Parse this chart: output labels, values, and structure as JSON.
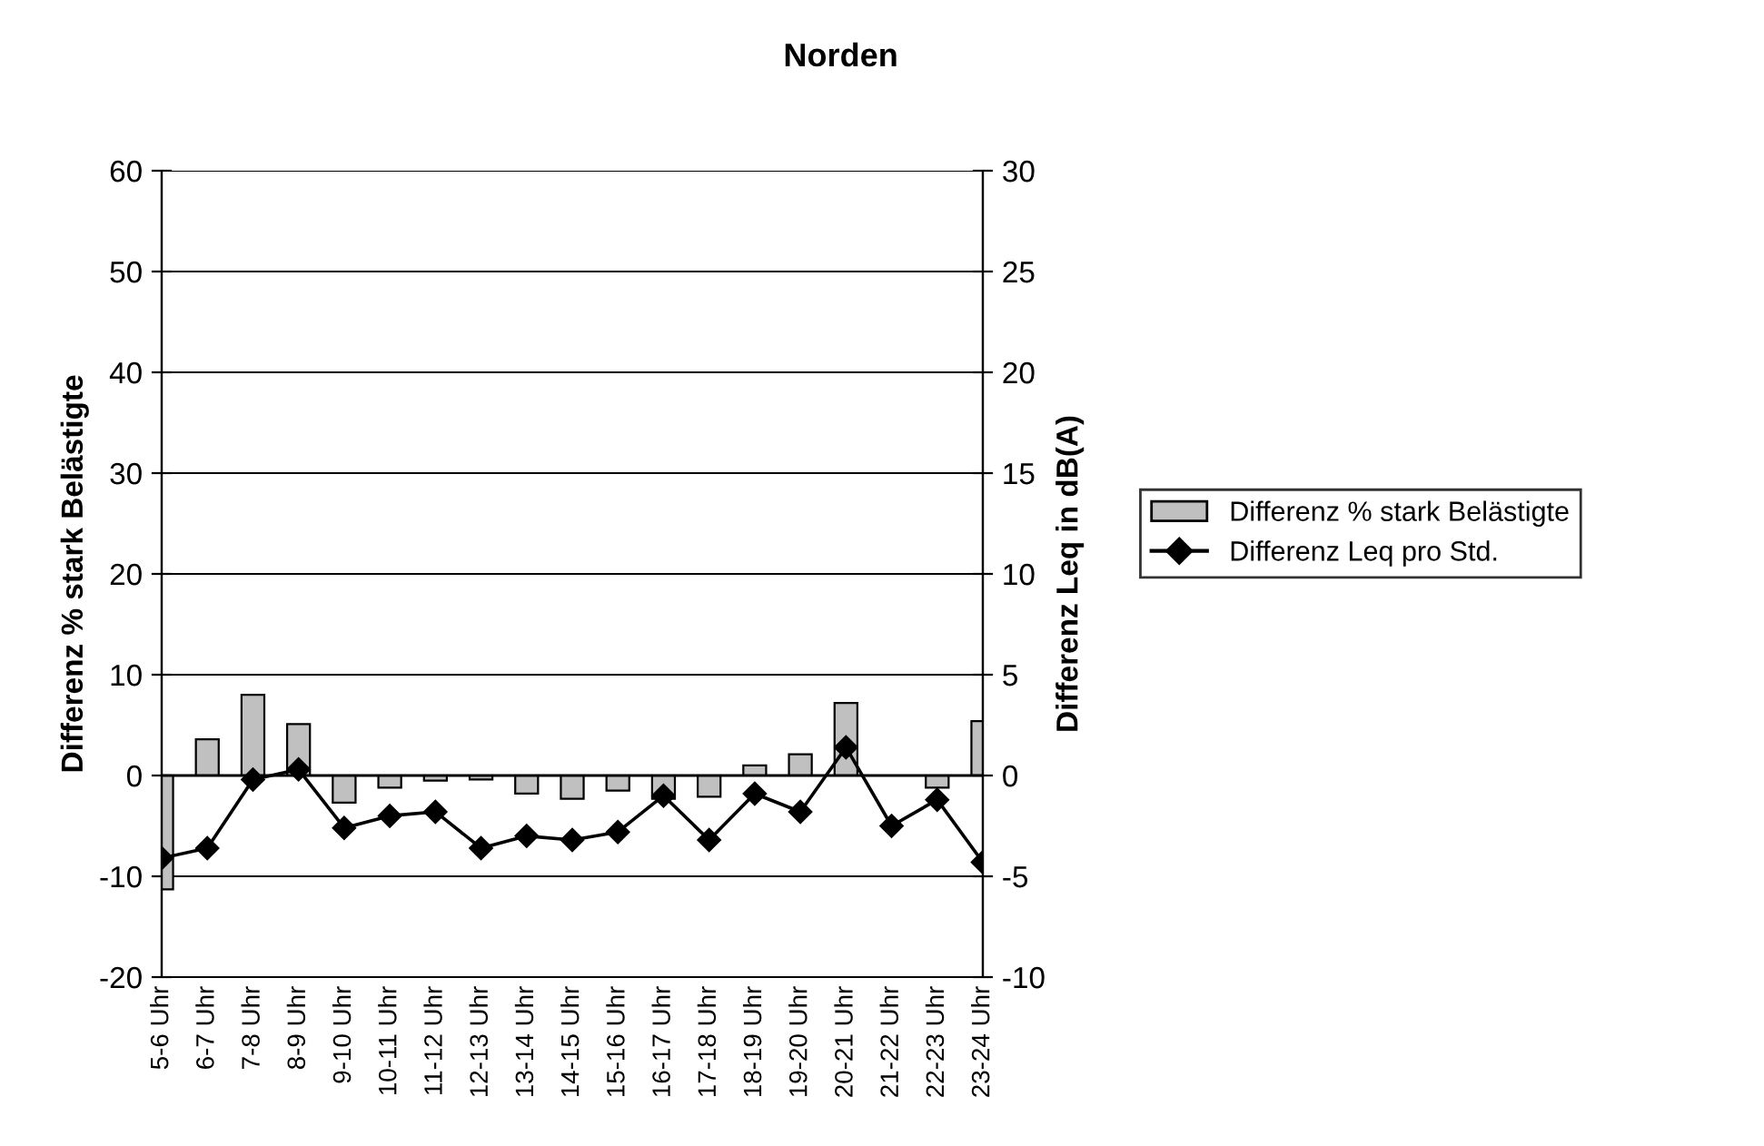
{
  "chart_data": {
    "type": "bar",
    "title": "Norden",
    "ylabel": "Differenz % stark Belästigte",
    "y2label": "Differenz Leq in dB(A)",
    "categories": [
      "5-6 Uhr",
      "6-7 Uhr",
      "7-8 Uhr",
      "8-9 Uhr",
      "9-10 Uhr",
      "10-11 Uhr",
      "11-12 Uhr",
      "12-13 Uhr",
      "13-14 Uhr",
      "14-15 Uhr",
      "15-16 Uhr",
      "16-17 Uhr",
      "17-18 Uhr",
      "18-19 Uhr",
      "19-20 Uhr",
      "20-21 Uhr",
      "21-22 Uhr",
      "22-23 Uhr",
      "23-24 Uhr"
    ],
    "series": [
      {
        "name": "Differenz % stark Belästigte",
        "color": "#c0c0c0",
        "values": [
          -11.3,
          3.6,
          8.0,
          5.1,
          -2.7,
          -1.2,
          -0.5,
          -0.4,
          -1.8,
          -2.3,
          -1.5,
          -2.3,
          -2.1,
          1.0,
          2.1,
          7.2,
          null,
          -1.2,
          5.4
        ]
      },
      {
        "name": "Differenz Leq pro Std.",
        "type": "line",
        "axis": "y2",
        "color": "#000000",
        "marker": "diamond",
        "values": [
          -4.1,
          -3.6,
          -0.2,
          0.3,
          -2.6,
          -2.0,
          -1.8,
          -3.6,
          -3.0,
          -3.2,
          -2.8,
          -1.0,
          -3.2,
          -0.9,
          -1.8,
          1.4,
          -2.5,
          -1.2,
          -4.3
        ]
      }
    ],
    "ylim": [
      -20,
      60
    ],
    "yticks": [
      -20,
      -10,
      0,
      10,
      20,
      30,
      40,
      50,
      60
    ],
    "y2lim": [
      -10,
      30
    ],
    "y2ticks": [
      -10,
      -5,
      0,
      5,
      10,
      15,
      20,
      25,
      30
    ],
    "grid": "y",
    "legend": "right"
  }
}
